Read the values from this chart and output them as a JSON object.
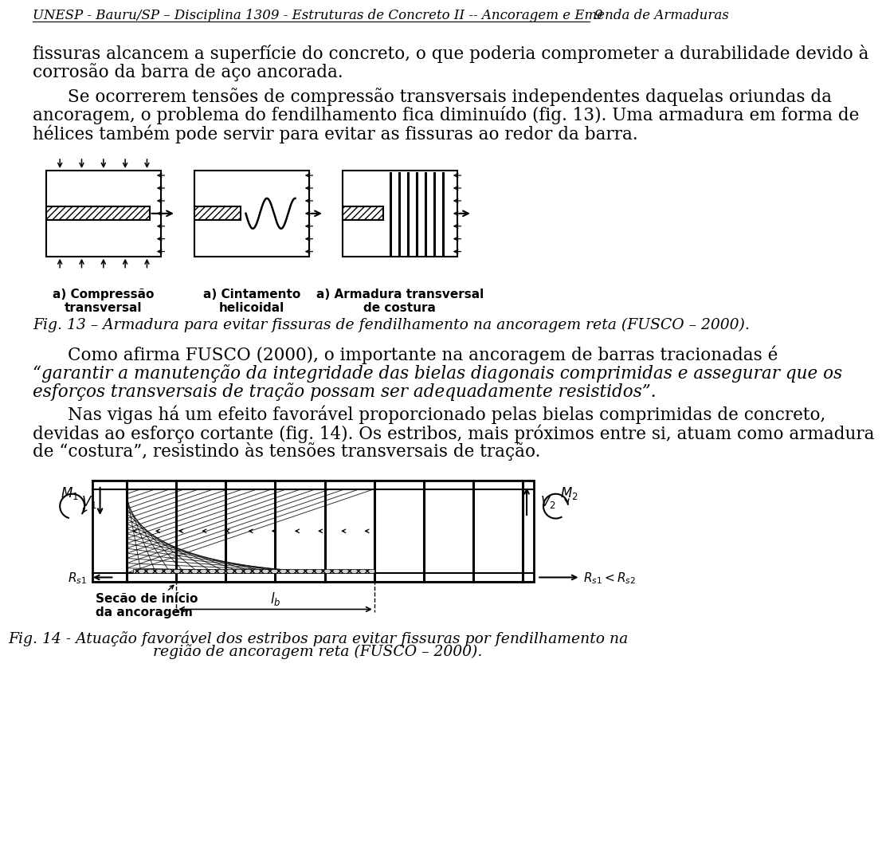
{
  "header_text": "UNESP - Bauru/SP – Disciplina 1309 - Estruturas de Concreto II -- Ancoragem e Emenda de Armaduras",
  "page_number": "9",
  "bg_color": "#ffffff",
  "text_color": "#000000",
  "font_size_body": 15.5,
  "font_size_header": 12,
  "font_size_caption": 13.5,
  "para1": "fissuras alcancem a superfície do concreto, o que poderia comprometer a durabilidade devido à",
  "para2": "corrosão da barra de aço ancorada.",
  "para3_indent": "Se ocorrerem tensões de compressão transversais independentes daquelas oriundas da",
  "para4": "ancoragem, o problema do fendilhamento fica diminuído (fig. 13). Uma armadura em forma de",
  "para5": "hélices também pode servir para evitar as fissuras ao redor da barra.",
  "fig13_caption": "Fig. 13 – Armadura para evitar fissuras de fendilhamento na ancoragem reta (FUSCO – 2000).",
  "label_a1": "a) Compressão\ntransversal",
  "label_a2": "a) Cintamento\nhelicoidal",
  "label_a3": "a) Armadura transversal\nde costura",
  "para6_indent": "Como afirma FUSCO (2000), o importante na ancoragem de barras tracionadas é",
  "para7_quote": "“garantir a manutenção da integridade das bielas diagonais comprimidas e assegurar que os",
  "para8_quote": "esforços transversais de tração possam ser adequadamente resistidos”.",
  "para9_indent": "Nas vigas há um efeito favorável proporcionado pelas bielas comprimidas de concreto,",
  "para10": "devidas ao esforço cortante (fig. 14). Os estribos, mais próximos entre si, atuam como armadura",
  "para11": "de “costura”, resistindo às tensões transversais de tração.",
  "fig14_label1": "Secão de início\nda ancoragem",
  "fig14_caption1": "Fig. 14 - Atuação favorável dos estribos para evitar fissuras por fendilhamento na",
  "fig14_caption2": "região de ancoragem reta (FUSCO – 2000)."
}
